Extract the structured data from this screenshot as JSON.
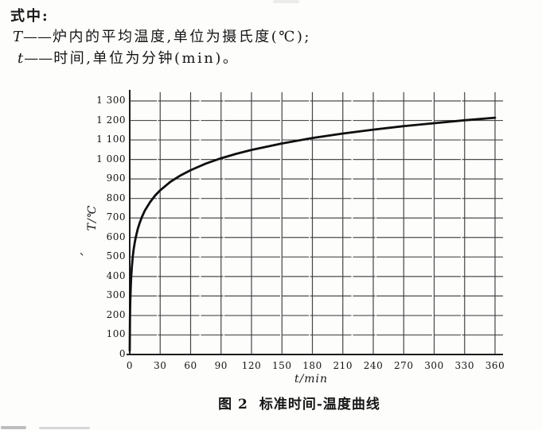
{
  "page": {
    "formula_intro": "式中:",
    "definitions": [
      {
        "symbol": "T",
        "dash": "——",
        "text": "炉内的平均温度,单位为摄氏度(℃);"
      },
      {
        "symbol": "t",
        "dash": "——",
        "text": "时间,单位为分钟(min)。"
      }
    ],
    "caption_figure": "图 2",
    "caption_title": "标准时间-温度曲线",
    "stray_mark": "、"
  },
  "chart_data": {
    "type": "line",
    "title": "标准时间-温度曲线",
    "xlabel": "t/min",
    "ylabel": "T/℃",
    "xlim": [
      0,
      360
    ],
    "ylim": [
      0,
      1300
    ],
    "grid": true,
    "x_ticks": [
      0,
      30,
      60,
      90,
      120,
      150,
      180,
      210,
      240,
      270,
      300,
      330,
      360
    ],
    "x_tick_labels": [
      "0",
      "30",
      "60",
      "90",
      "120",
      "150",
      "180",
      "210",
      "240",
      "270",
      "300",
      "330",
      "360"
    ],
    "y_ticks": [
      0,
      100,
      200,
      300,
      400,
      500,
      600,
      700,
      800,
      900,
      1000,
      1100,
      1200,
      1300
    ],
    "y_tick_labels": [
      "0",
      "100",
      "200",
      "300",
      "400",
      "500",
      "600",
      "700",
      "800",
      "900",
      "1 000",
      "1 100",
      "1 200",
      "1 300"
    ],
    "series": [
      {
        "name": "标准时间-温度曲线",
        "points": [
          [
            0,
            20
          ],
          [
            0.25,
            185
          ],
          [
            0.5,
            261
          ],
          [
            1,
            349
          ],
          [
            1.5,
            404
          ],
          [
            2,
            445
          ],
          [
            3,
            502
          ],
          [
            4,
            544
          ],
          [
            5,
            576
          ],
          [
            6,
            603
          ],
          [
            8,
            645
          ],
          [
            10,
            678
          ],
          [
            12,
            705
          ],
          [
            15,
            739
          ],
          [
            20,
            781
          ],
          [
            25,
            815
          ],
          [
            30,
            842
          ],
          [
            40,
            885
          ],
          [
            50,
            918
          ],
          [
            60,
            945
          ],
          [
            75,
            979
          ],
          [
            90,
            1006
          ],
          [
            105,
            1029
          ],
          [
            120,
            1049
          ],
          [
            150,
            1082
          ],
          [
            180,
            1110
          ],
          [
            210,
            1133
          ],
          [
            240,
            1153
          ],
          [
            270,
            1171
          ],
          [
            300,
            1186
          ],
          [
            330,
            1201
          ],
          [
            360,
            1214
          ]
        ]
      }
    ],
    "colors": {
      "curve": "#0f0f0f",
      "grid": "#3d3d3d",
      "axis": "#1c1c1c",
      "paper": "#fdfdfc"
    }
  }
}
